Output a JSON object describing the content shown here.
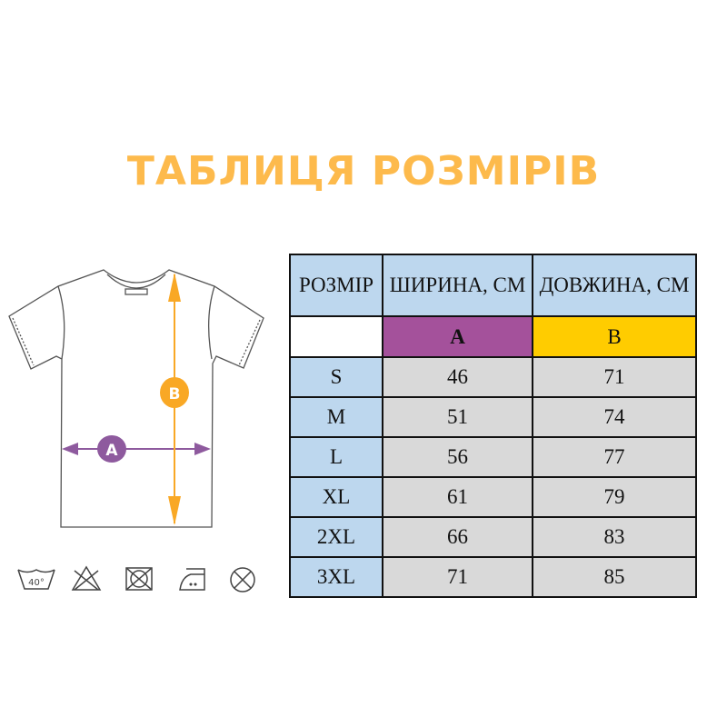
{
  "title": "ТАБЛИЦЯ РОЗМІРІВ",
  "diagram": {
    "label_a": "A",
    "label_b": "B",
    "color_a": "#8E5A9E",
    "color_b": "#F9A825"
  },
  "care_icons": [
    "wash-40-icon",
    "no-bleach-icon",
    "no-tumble-dry-icon",
    "iron-low-icon",
    "no-dry-clean-icon"
  ],
  "care_wash_temp": "40°",
  "table": {
    "headers": [
      "РОЗМІР",
      "ШИРИНА, СМ",
      "ДОВЖИНА, СМ"
    ],
    "markers": [
      "",
      "A",
      "B"
    ],
    "marker_colors": [
      "#FFFFFF",
      "#A4519B",
      "#FFCC00"
    ],
    "rows": [
      {
        "size": "S",
        "width": "46",
        "length": "71"
      },
      {
        "size": "M",
        "width": "51",
        "length": "74"
      },
      {
        "size": "L",
        "width": "56",
        "length": "77"
      },
      {
        "size": "XL",
        "width": "61",
        "length": "79"
      },
      {
        "size": "2XL",
        "width": "66",
        "length": "83"
      },
      {
        "size": "3XL",
        "width": "71",
        "length": "85"
      }
    ]
  }
}
